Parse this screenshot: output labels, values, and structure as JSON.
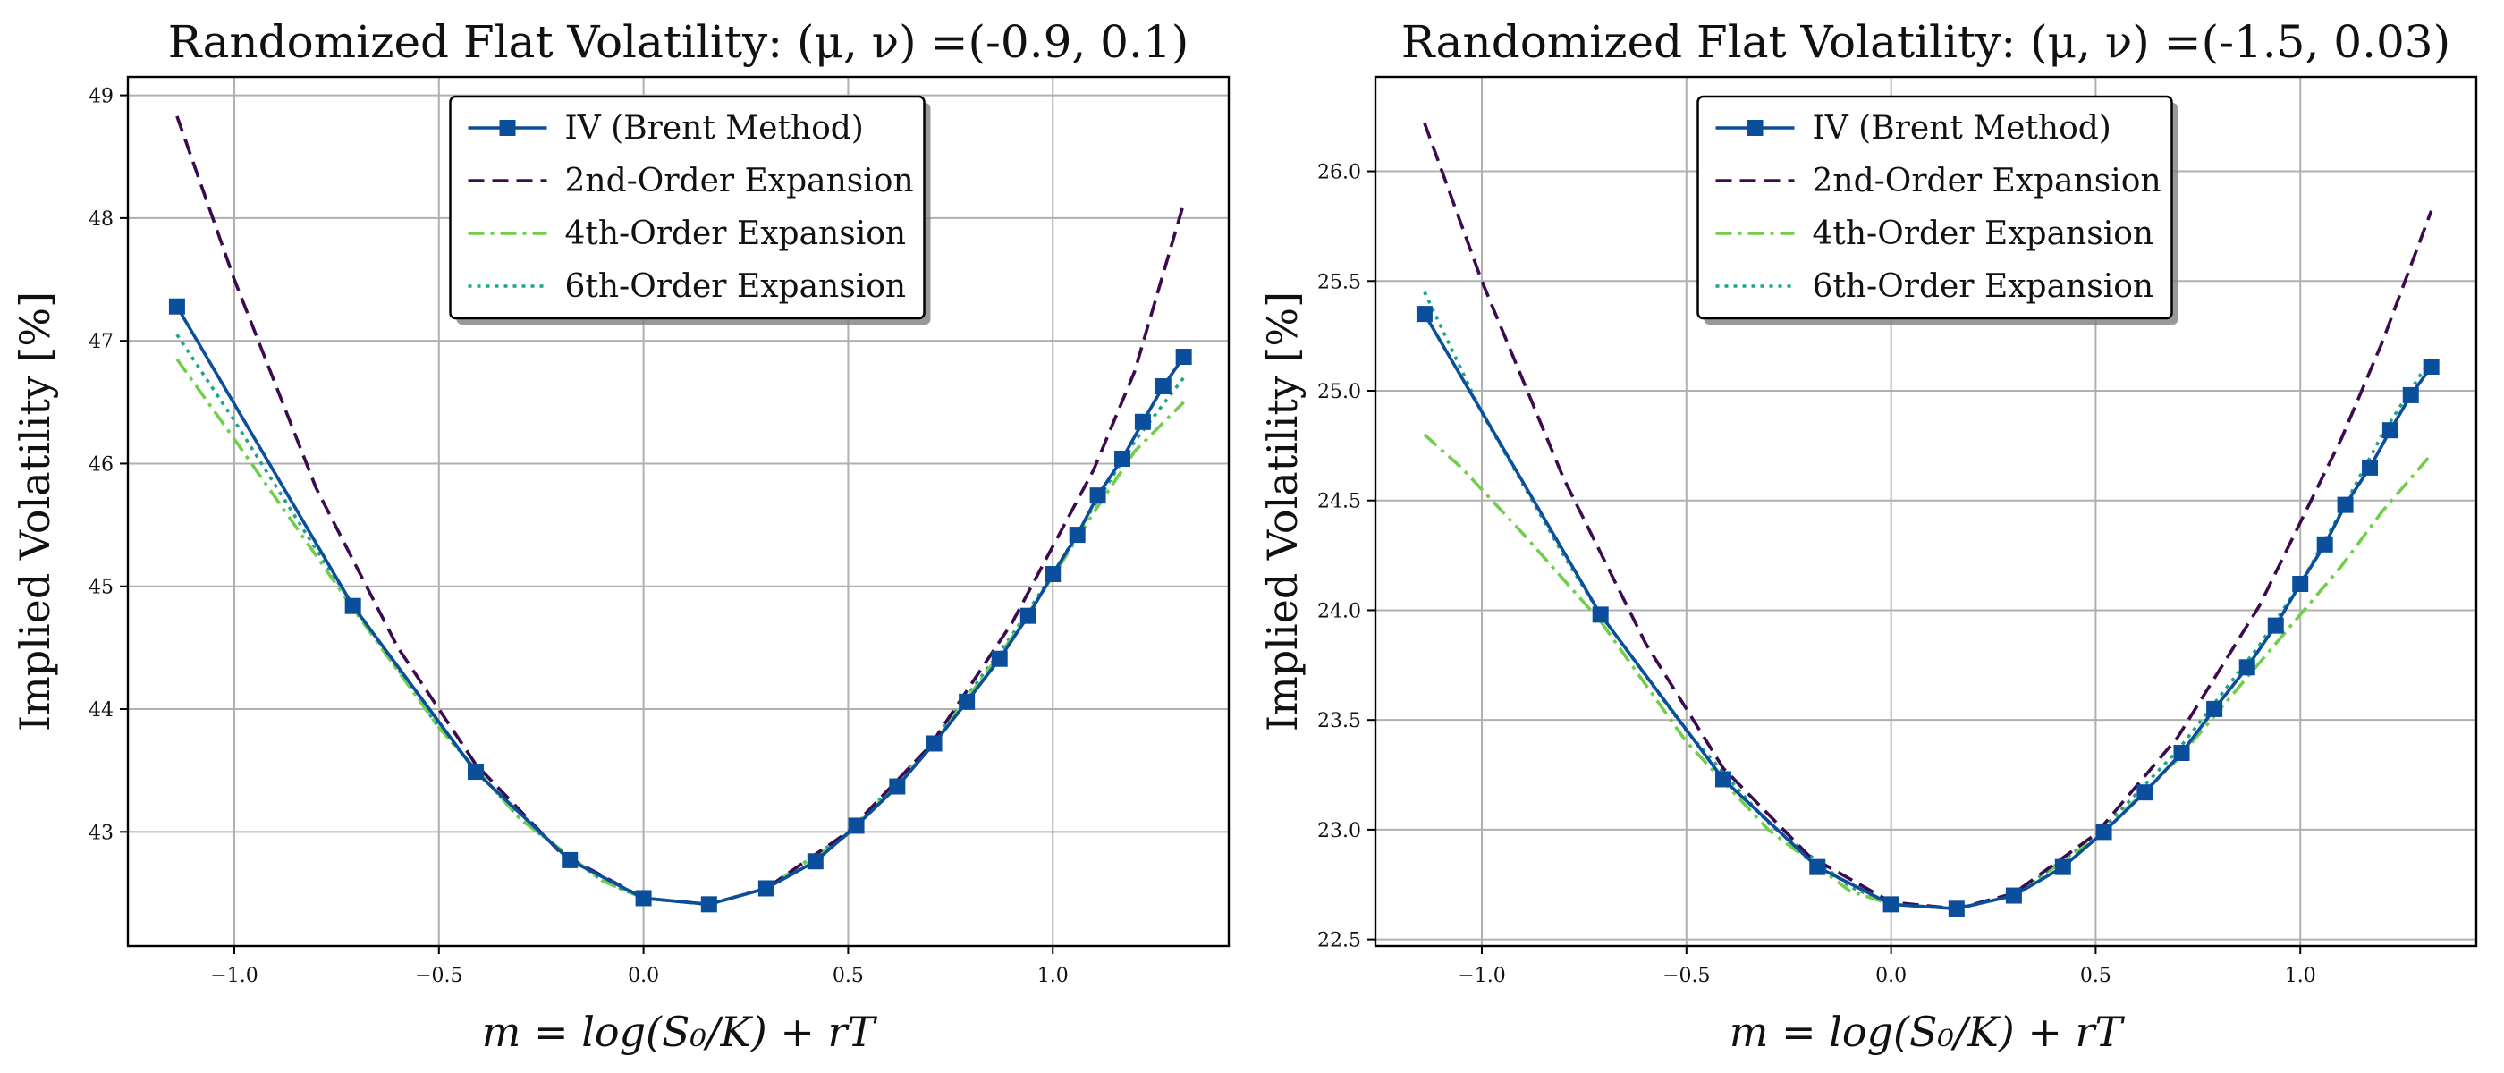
{
  "colors": {
    "iv": "#0b4f9c",
    "second": "#3b0a4f",
    "fourth": "#6fcf4a",
    "sixth": "#1fa38a",
    "grid": "#b0b0b0",
    "axes": "#000000"
  },
  "chart_data": [
    {
      "type": "line",
      "title": "Randomized Flat Volatility: (μ, ν) =(-0.9, 0.1)",
      "xlabel": "m = log(S₀/K) + rT",
      "ylabel": "Implied Volatility [%]",
      "xlim": [
        -1.26,
        1.43
      ],
      "ylim": [
        42.07,
        49.15
      ],
      "xticks": [
        -1.0,
        -0.5,
        0.0,
        0.5,
        1.0
      ],
      "xtick_labels": [
        "−1.0",
        "−0.5",
        "0.0",
        "0.5",
        "1.0"
      ],
      "yticks": [
        43,
        44,
        45,
        46,
        47,
        48,
        49
      ],
      "ytick_labels": [
        "43",
        "44",
        "45",
        "46",
        "47",
        "48",
        "49"
      ],
      "grid": true,
      "legend_position": "top-center",
      "series": [
        {
          "name": "IV (Brent Method)",
          "style": "solid-square-markers",
          "points": [
            [
              -1.14,
              47.28
            ],
            [
              -0.71,
              44.84
            ],
            [
              -0.41,
              43.49
            ],
            [
              -0.18,
              42.77
            ],
            [
              0.0,
              42.46
            ],
            [
              0.16,
              42.41
            ],
            [
              0.3,
              42.54
            ],
            [
              0.42,
              42.76
            ],
            [
              0.52,
              43.05
            ],
            [
              0.62,
              43.37
            ],
            [
              0.71,
              43.72
            ],
            [
              0.79,
              44.06
            ],
            [
              0.87,
              44.41
            ],
            [
              0.94,
              44.76
            ],
            [
              1.0,
              45.1
            ],
            [
              1.06,
              45.42
            ],
            [
              1.11,
              45.74
            ],
            [
              1.17,
              46.04
            ],
            [
              1.22,
              46.34
            ],
            [
              1.27,
              46.63
            ],
            [
              1.32,
              46.87
            ]
          ]
        },
        {
          "name": "2nd-Order Expansion",
          "style": "dashed",
          "points": [
            [
              -1.14,
              48.83
            ],
            [
              -1.0,
              47.5
            ],
            [
              -0.8,
              45.8
            ],
            [
              -0.6,
              44.5
            ],
            [
              -0.41,
              43.55
            ],
            [
              -0.2,
              42.82
            ],
            [
              0.0,
              42.46
            ],
            [
              0.16,
              42.41
            ],
            [
              0.3,
              42.54
            ],
            [
              0.5,
              43.0
            ],
            [
              0.7,
              43.7
            ],
            [
              0.9,
              44.7
            ],
            [
              1.1,
              45.95
            ],
            [
              1.2,
              46.75
            ],
            [
              1.32,
              48.12
            ]
          ]
        },
        {
          "name": "4th-Order Expansion",
          "style": "dashdot",
          "points": [
            [
              -1.14,
              46.85
            ],
            [
              -1.0,
              46.2
            ],
            [
              -0.8,
              45.25
            ],
            [
              -0.71,
              44.82
            ],
            [
              -0.5,
              43.85
            ],
            [
              -0.3,
              43.1
            ],
            [
              -0.1,
              42.6
            ],
            [
              0.0,
              42.46
            ],
            [
              0.16,
              42.41
            ],
            [
              0.3,
              42.54
            ],
            [
              0.5,
              42.98
            ],
            [
              0.7,
              43.68
            ],
            [
              0.9,
              44.58
            ],
            [
              1.0,
              45.08
            ],
            [
              1.1,
              45.6
            ],
            [
              1.2,
              46.1
            ],
            [
              1.32,
              46.5
            ]
          ]
        },
        {
          "name": "6th-Order Expansion",
          "style": "dotted",
          "points": [
            [
              -1.14,
              47.05
            ],
            [
              -1.0,
              46.35
            ],
            [
              -0.8,
              45.3
            ],
            [
              -0.71,
              44.85
            ],
            [
              -0.5,
              43.85
            ],
            [
              -0.3,
              43.1
            ],
            [
              -0.1,
              42.6
            ],
            [
              0.0,
              42.46
            ],
            [
              0.16,
              42.41
            ],
            [
              0.3,
              42.54
            ],
            [
              0.5,
              42.99
            ],
            [
              0.7,
              43.7
            ],
            [
              0.9,
              44.6
            ],
            [
              1.0,
              45.1
            ],
            [
              1.1,
              45.65
            ],
            [
              1.2,
              46.18
            ],
            [
              1.32,
              46.7
            ]
          ]
        }
      ]
    },
    {
      "type": "line",
      "title": "Randomized Flat Volatility: (μ, ν) =(-1.5, 0.03)",
      "xlabel": "m = log(S₀/K) + rT",
      "ylabel": "Implied Volatility [%]",
      "xlim": [
        -1.26,
        1.43
      ],
      "ylim": [
        22.47,
        26.43
      ],
      "xticks": [
        -1.0,
        -0.5,
        0.0,
        0.5,
        1.0
      ],
      "xtick_labels": [
        "−1.0",
        "−0.5",
        "0.0",
        "0.5",
        "1.0"
      ],
      "yticks": [
        22.5,
        23.0,
        23.5,
        24.0,
        24.5,
        25.0,
        25.5,
        26.0
      ],
      "ytick_labels": [
        "22.5",
        "23.0",
        "23.5",
        "24.0",
        "24.5",
        "25.0",
        "25.5",
        "26.0"
      ],
      "grid": true,
      "legend_position": "top-center",
      "series": [
        {
          "name": "IV (Brent Method)",
          "style": "solid-square-markers",
          "points": [
            [
              -1.14,
              25.35
            ],
            [
              -0.71,
              23.98
            ],
            [
              -0.41,
              23.23
            ],
            [
              -0.18,
              22.83
            ],
            [
              0.0,
              22.66
            ],
            [
              0.16,
              22.64
            ],
            [
              0.3,
              22.7
            ],
            [
              0.42,
              22.83
            ],
            [
              0.52,
              22.99
            ],
            [
              0.62,
              23.17
            ],
            [
              0.71,
              23.35
            ],
            [
              0.79,
              23.55
            ],
            [
              0.87,
              23.74
            ],
            [
              0.94,
              23.93
            ],
            [
              1.0,
              24.12
            ],
            [
              1.06,
              24.3
            ],
            [
              1.11,
              24.48
            ],
            [
              1.17,
              24.65
            ],
            [
              1.22,
              24.82
            ],
            [
              1.27,
              24.98
            ],
            [
              1.32,
              25.11
            ]
          ]
        },
        {
          "name": "2nd-Order Expansion",
          "style": "dashed",
          "points": [
            [
              -1.14,
              26.22
            ],
            [
              -1.0,
              25.5
            ],
            [
              -0.8,
              24.6
            ],
            [
              -0.6,
              23.85
            ],
            [
              -0.41,
              23.28
            ],
            [
              -0.2,
              22.88
            ],
            [
              0.0,
              22.67
            ],
            [
              0.16,
              22.64
            ],
            [
              0.3,
              22.71
            ],
            [
              0.5,
              22.98
            ],
            [
              0.7,
              23.42
            ],
            [
              0.9,
              24.02
            ],
            [
              1.1,
              24.78
            ],
            [
              1.2,
              25.22
            ],
            [
              1.32,
              25.82
            ]
          ]
        },
        {
          "name": "4th-Order Expansion",
          "style": "dashdot",
          "points": [
            [
              -1.14,
              24.8
            ],
            [
              -1.05,
              24.65
            ],
            [
              -0.9,
              24.35
            ],
            [
              -0.71,
              23.95
            ],
            [
              -0.5,
              23.4
            ],
            [
              -0.3,
              23.0
            ],
            [
              -0.1,
              22.72
            ],
            [
              0.0,
              22.66
            ],
            [
              0.16,
              22.64
            ],
            [
              0.3,
              22.7
            ],
            [
              0.5,
              22.96
            ],
            [
              0.7,
              23.32
            ],
            [
              0.9,
              23.76
            ],
            [
              1.0,
              23.98
            ],
            [
              1.1,
              24.2
            ],
            [
              1.2,
              24.45
            ],
            [
              1.32,
              24.71
            ]
          ]
        },
        {
          "name": "6th-Order Expansion",
          "style": "dotted",
          "points": [
            [
              -1.14,
              25.45
            ],
            [
              -1.0,
              24.9
            ],
            [
              -0.8,
              24.25
            ],
            [
              -0.71,
              23.98
            ],
            [
              -0.5,
              23.45
            ],
            [
              -0.3,
              23.03
            ],
            [
              -0.1,
              22.74
            ],
            [
              0.0,
              22.66
            ],
            [
              0.16,
              22.64
            ],
            [
              0.3,
              22.7
            ],
            [
              0.5,
              22.97
            ],
            [
              0.7,
              23.36
            ],
            [
              0.9,
              23.84
            ],
            [
              1.0,
              24.12
            ],
            [
              1.1,
              24.45
            ],
            [
              1.2,
              24.8
            ],
            [
              1.32,
              25.15
            ]
          ]
        }
      ]
    }
  ]
}
